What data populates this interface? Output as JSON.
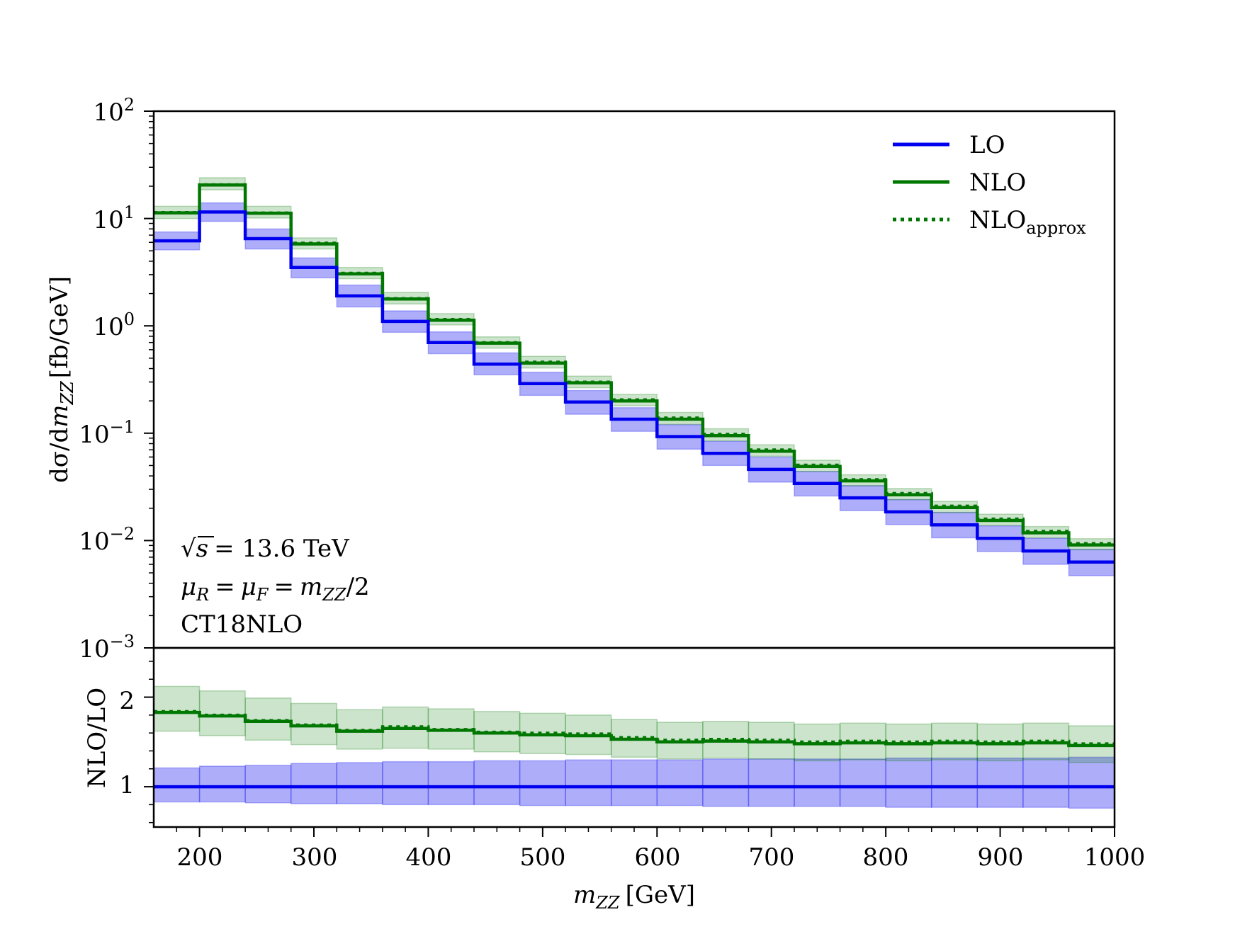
{
  "chart_data": [
    {
      "type": "step-histogram",
      "panel": "main",
      "yscale": "log",
      "xlim": [
        160,
        1000
      ],
      "ylim": [
        0.001,
        100
      ],
      "ylabel": "dσ/dm_ZZ [fb/GeV]",
      "ylabel_parts": {
        "pre": "dσ/d",
        "var": "m",
        "sub": "ZZ",
        "post": "[fb/GeV]"
      },
      "ytick_labels": [
        {
          "value": 100,
          "base": "10",
          "exp": "2"
        },
        {
          "value": 10,
          "base": "10",
          "exp": "1"
        },
        {
          "value": 1,
          "base": "10",
          "exp": "0"
        },
        {
          "value": 0.1,
          "base": "10",
          "exp": "−1"
        },
        {
          "value": 0.01,
          "base": "10",
          "exp": "−2"
        },
        {
          "value": 0.001,
          "base": "10",
          "exp": "−3"
        }
      ],
      "bin_edges": [
        160,
        200,
        240,
        280,
        320,
        360,
        400,
        440,
        480,
        520,
        560,
        600,
        640,
        680,
        720,
        760,
        800,
        840,
        880,
        920,
        960,
        1000
      ],
      "series": [
        {
          "name": "LO",
          "color": "#0000ee",
          "style": "solid",
          "values": [
            6.2,
            11.5,
            6.5,
            3.5,
            1.9,
            1.1,
            0.7,
            0.44,
            0.29,
            0.195,
            0.135,
            0.093,
            0.065,
            0.046,
            0.034,
            0.025,
            0.0185,
            0.014,
            0.0105,
            0.008,
            0.0063
          ],
          "band_low": [
            5.1,
            9.4,
            5.2,
            2.8,
            1.5,
            0.87,
            0.55,
            0.35,
            0.225,
            0.15,
            0.104,
            0.071,
            0.05,
            0.035,
            0.026,
            0.019,
            0.0141,
            0.0106,
            0.0079,
            0.006,
            0.0047
          ],
          "band_high": [
            7.5,
            14.0,
            8.0,
            4.3,
            2.4,
            1.38,
            0.88,
            0.56,
            0.37,
            0.25,
            0.173,
            0.12,
            0.084,
            0.06,
            0.044,
            0.0325,
            0.0241,
            0.0183,
            0.0137,
            0.0105,
            0.0083
          ]
        },
        {
          "name": "NLO",
          "color": "#007700",
          "style": "solid",
          "values": [
            11.3,
            20.5,
            11.2,
            5.8,
            3.05,
            1.78,
            1.13,
            0.69,
            0.45,
            0.295,
            0.2,
            0.135,
            0.095,
            0.068,
            0.049,
            0.036,
            0.0267,
            0.0203,
            0.0154,
            0.0118,
            0.0091
          ],
          "band_low": [
            10.0,
            18.5,
            10.1,
            5.2,
            2.75,
            1.6,
            1.02,
            0.62,
            0.405,
            0.265,
            0.18,
            0.121,
            0.085,
            0.061,
            0.044,
            0.0323,
            0.024,
            0.0182,
            0.0138,
            0.0106,
            0.0082
          ],
          "band_high": [
            13.0,
            24.0,
            13.0,
            6.6,
            3.5,
            2.05,
            1.3,
            0.79,
            0.52,
            0.34,
            0.23,
            0.156,
            0.11,
            0.078,
            0.056,
            0.041,
            0.0305,
            0.0232,
            0.0176,
            0.0135,
            0.0104
          ]
        },
        {
          "name": "NLO_approx",
          "color": "#007700",
          "style": "dotted",
          "values": [
            11.4,
            20.7,
            11.3,
            5.9,
            3.1,
            1.8,
            1.15,
            0.7,
            0.46,
            0.3,
            0.205,
            0.139,
            0.098,
            0.07,
            0.0505,
            0.037,
            0.0275,
            0.021,
            0.0159,
            0.0122,
            0.0094
          ]
        }
      ]
    },
    {
      "type": "step-histogram",
      "panel": "ratio",
      "xlim": [
        160,
        1000
      ],
      "ylim": [
        0.55,
        2.55
      ],
      "ylabel": "NLO/LO",
      "xlabel": "m_ZZ [GeV]",
      "xlabel_parts": {
        "var": "m",
        "sub": "ZZ",
        "post": "[GeV]"
      },
      "xticks": [
        200,
        300,
        400,
        500,
        600,
        700,
        800,
        900,
        1000
      ],
      "xtick_labels": [
        "200",
        "300",
        "400",
        "500",
        "600",
        "700",
        "800",
        "900",
        "1000"
      ],
      "yticks": [
        1,
        2
      ],
      "ytick_labels": [
        "1",
        "2"
      ],
      "bin_edges": [
        160,
        200,
        240,
        280,
        320,
        360,
        400,
        440,
        480,
        520,
        560,
        600,
        640,
        680,
        720,
        760,
        800,
        840,
        880,
        920,
        960,
        1000
      ],
      "series": [
        {
          "name": "LO",
          "color": "#0000ee",
          "style": "solid",
          "values": [
            1.0,
            1.0,
            1.0,
            1.0,
            1.0,
            1.0,
            1.0,
            1.0,
            1.0,
            1.0,
            1.0,
            1.0,
            1.0,
            1.0,
            1.0,
            1.0,
            1.0,
            1.0,
            1.0,
            1.0,
            1.0
          ],
          "band_low": [
            0.83,
            0.83,
            0.82,
            0.81,
            0.81,
            0.8,
            0.8,
            0.8,
            0.79,
            0.79,
            0.79,
            0.79,
            0.78,
            0.78,
            0.78,
            0.78,
            0.77,
            0.77,
            0.77,
            0.77,
            0.76
          ],
          "band_high": [
            1.21,
            1.23,
            1.24,
            1.26,
            1.27,
            1.28,
            1.28,
            1.29,
            1.29,
            1.3,
            1.3,
            1.3,
            1.31,
            1.31,
            1.31,
            1.31,
            1.32,
            1.32,
            1.32,
            1.32,
            1.33
          ]
        },
        {
          "name": "NLO",
          "color": "#007700",
          "style": "solid",
          "values": [
            1.83,
            1.79,
            1.73,
            1.68,
            1.62,
            1.65,
            1.63,
            1.6,
            1.58,
            1.57,
            1.53,
            1.5,
            1.51,
            1.5,
            1.48,
            1.49,
            1.48,
            1.49,
            1.48,
            1.49,
            1.46
          ],
          "band_low": [
            1.62,
            1.57,
            1.52,
            1.47,
            1.42,
            1.43,
            1.42,
            1.39,
            1.37,
            1.36,
            1.33,
            1.31,
            1.32,
            1.31,
            1.29,
            1.3,
            1.29,
            1.3,
            1.29,
            1.3,
            1.27
          ],
          "band_high": [
            2.12,
            2.07,
            1.99,
            1.93,
            1.86,
            1.89,
            1.87,
            1.84,
            1.82,
            1.8,
            1.75,
            1.72,
            1.73,
            1.72,
            1.7,
            1.71,
            1.7,
            1.71,
            1.7,
            1.71,
            1.68
          ]
        },
        {
          "name": "NLO_approx",
          "color": "#007700",
          "style": "dotted",
          "values": [
            1.84,
            1.8,
            1.74,
            1.69,
            1.63,
            1.67,
            1.64,
            1.61,
            1.6,
            1.59,
            1.55,
            1.52,
            1.53,
            1.52,
            1.5,
            1.51,
            1.5,
            1.51,
            1.5,
            1.51,
            1.48
          ]
        }
      ]
    }
  ],
  "legend": {
    "position": "top-right",
    "items": [
      {
        "label": "LO",
        "sub": "",
        "color": "#0000ee",
        "style": "solid"
      },
      {
        "label": "NLO",
        "sub": "",
        "color": "#007700",
        "style": "solid"
      },
      {
        "label": "NLO",
        "sub": "approx",
        "color": "#007700",
        "style": "dotted"
      }
    ]
  },
  "annotations": {
    "energy": {
      "sym": "s",
      "rest": "= 13.6 TeV"
    },
    "scale": {
      "mu": "μ",
      "r": "R",
      "eq1": "=",
      "f": "F",
      "eq2": "=",
      "m": "m",
      "zz": "ZZ",
      "tail": "/2"
    },
    "pdf": "CT18NLO"
  }
}
